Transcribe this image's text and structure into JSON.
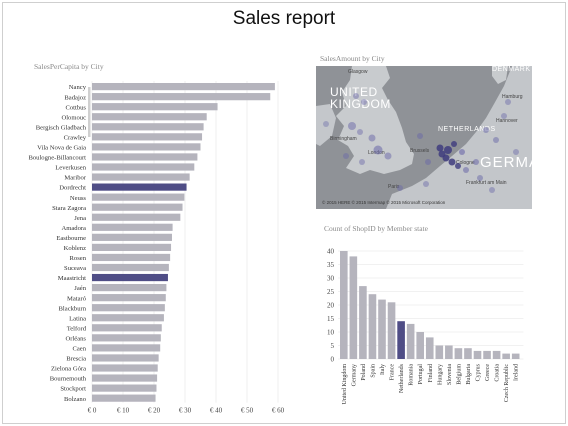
{
  "report": {
    "title": "Sales report"
  },
  "chart_data": [
    {
      "type": "bar",
      "orientation": "horizontal",
      "title": "SalesPerCapita by City",
      "categories": [
        "Nancy",
        "Badajoz",
        "Cottbus",
        "Olomouc",
        "Bergisch Gladbach",
        "Crawley",
        "Vila Nova de Gaia",
        "Boulogne-Billancourt",
        "Leverkusen",
        "Maribor",
        "Dordrecht",
        "Neuss",
        "Stara Zagora",
        "Jena",
        "Amadora",
        "Eastbourne",
        "Koblenz",
        "Rosen",
        "Suceava",
        "Maastricht",
        "Jaén",
        "Mataró",
        "Blackburn",
        "Latina",
        "Telford",
        "Orléans",
        "Caen",
        "Brescia",
        "Zielona Góra",
        "Bournemouth",
        "Stockport",
        "Bolzano"
      ],
      "values": [
        59,
        57.5,
        40.5,
        37,
        36,
        35.5,
        35,
        34,
        33,
        31.5,
        30.5,
        29.8,
        29.2,
        28.5,
        26,
        25.8,
        25.5,
        25.2,
        24.8,
        24.5,
        24,
        23.8,
        23.5,
        23.2,
        22.5,
        22.2,
        22,
        21.5,
        21.2,
        21,
        20.8,
        20.5
      ],
      "highlighted": [
        "Dordrecht",
        "Maastricht"
      ],
      "xticks": [
        "€ 0",
        "€ 10",
        "€ 20",
        "€ 30",
        "€ 40",
        "€ 50",
        "€ 60"
      ],
      "xlim": [
        0,
        63
      ],
      "grid": true,
      "colors": {
        "bar": "#b5b4bd",
        "highlight": "#4f4d86"
      }
    },
    {
      "type": "bar",
      "title": "Count of ShopID by Member state",
      "categories": [
        "United Kingdom",
        "Germany",
        "Poland",
        "Spain",
        "Italy",
        "France",
        "Netherlands",
        "Romania",
        "Portugal",
        "Finland",
        "Hungary",
        "Slovenia",
        "Belgium",
        "Bulgaria",
        "Cyprus",
        "Greece",
        "Croatia",
        "Czech Republic",
        "Ireland"
      ],
      "values": [
        40,
        38,
        27,
        24,
        22,
        21,
        14,
        13,
        10,
        8,
        5,
        5,
        4,
        4,
        3,
        3,
        3,
        2,
        2
      ],
      "highlighted": [
        "Netherlands"
      ],
      "yticks": [
        "0",
        "5",
        "10",
        "15",
        "20",
        "25",
        "30",
        "35",
        "40"
      ],
      "ylim": [
        0,
        42
      ],
      "grid": true,
      "colors": {
        "bar": "#b5b4bd",
        "highlight": "#4f4d86"
      }
    }
  ],
  "map": {
    "title": "SalesAmount by City",
    "labels": {
      "uk": "UNITED\nKINGDOM",
      "netherlands": "NETHERLANDS",
      "denmark": "DENMARK",
      "germany": "GERMAN",
      "glasgow": "Glasgow",
      "birmingham": "Birmingham",
      "london": "London",
      "brussels": "Brussels",
      "paris": "Paris",
      "hamburg": "Hamburg",
      "hannover": "Hannover",
      "cologne": "Cologne",
      "frankfurt": "Frankfurt am Main"
    },
    "attribution": "© 2015 HERE  © 2015 Intermap  © 2015 Microsoft Corporation",
    "colors": {
      "land": "#c2c5c9",
      "water": "#8f9297",
      "bubble": "#6a68a8",
      "bubble_dark": "#3f3c7e"
    }
  }
}
